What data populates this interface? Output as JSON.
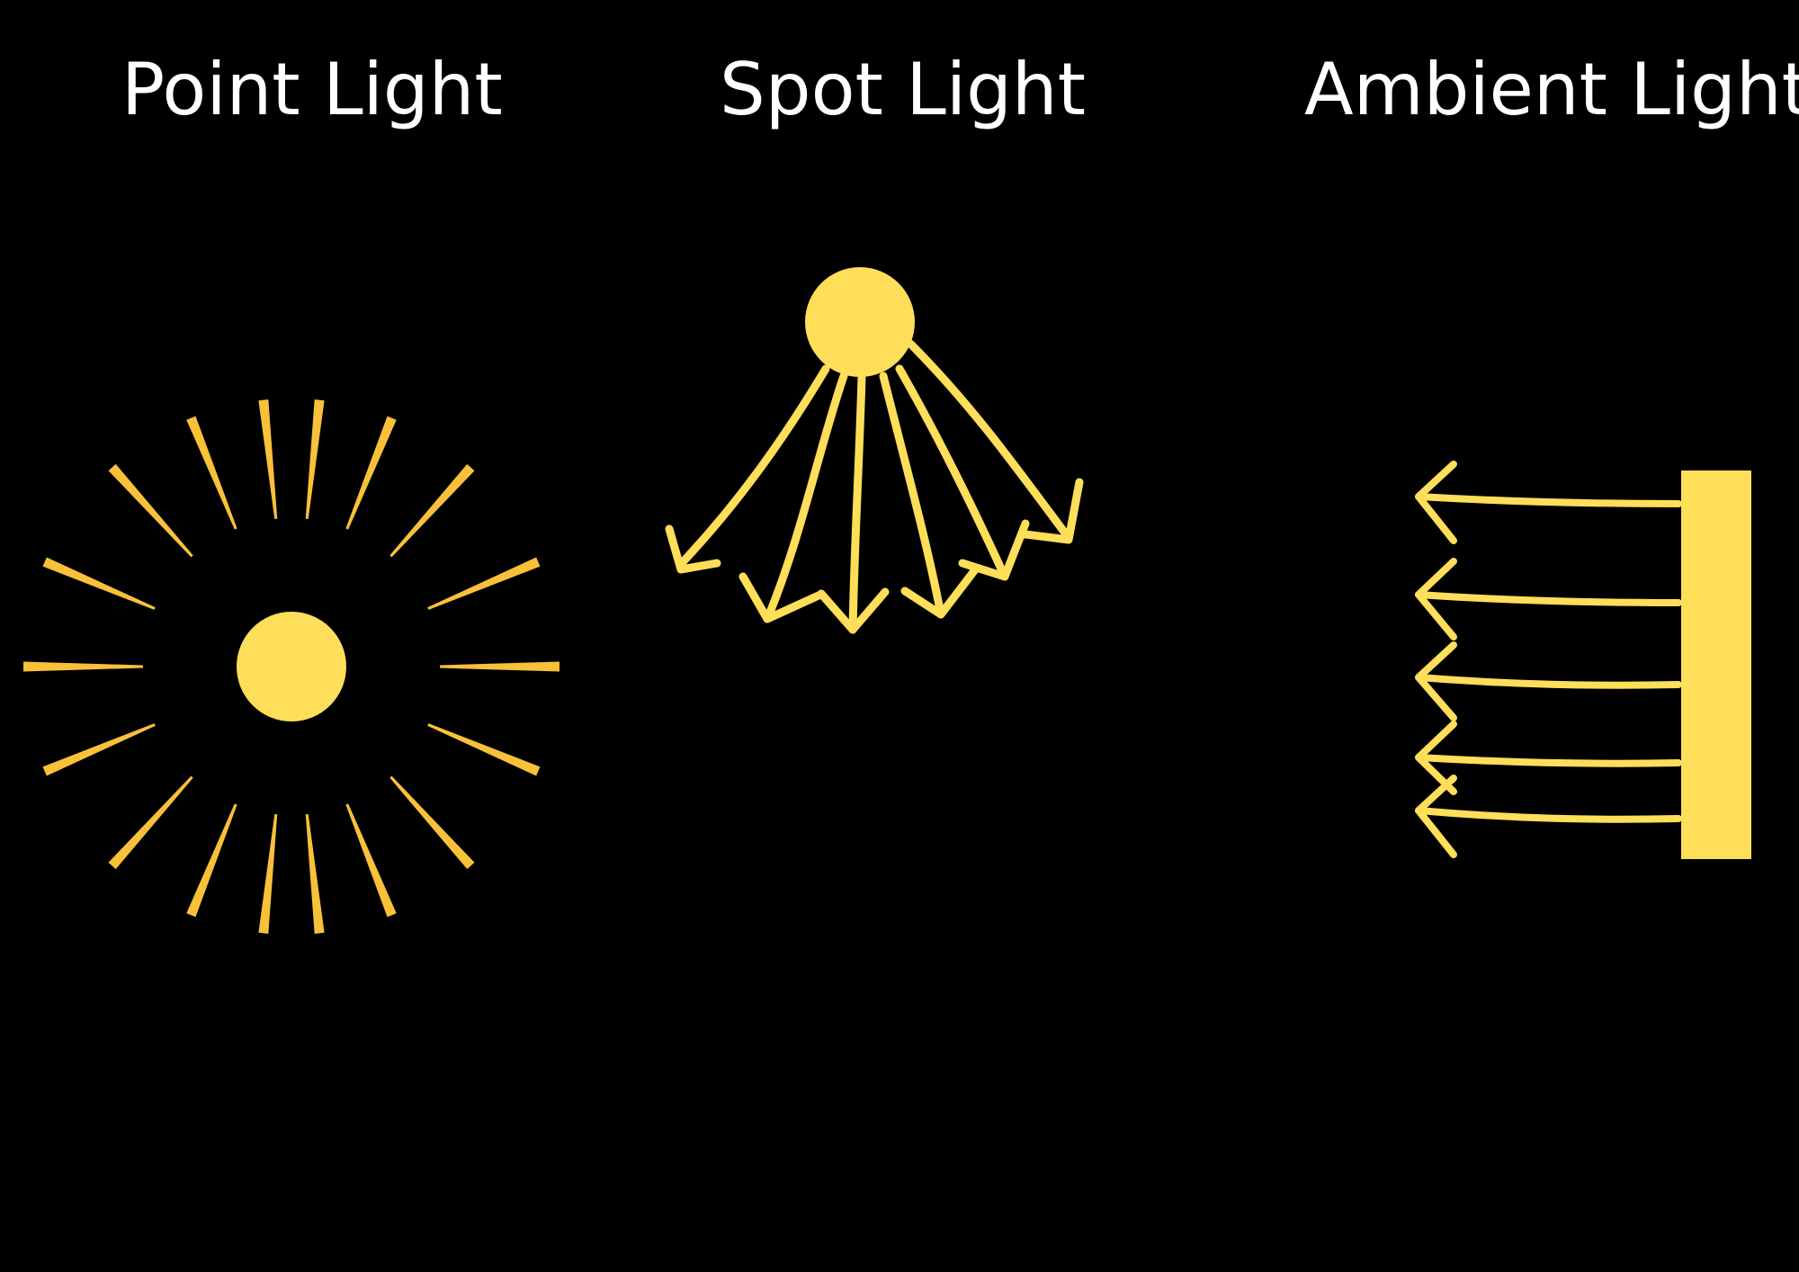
{
  "labels": {
    "point": "Point Light",
    "spot": "Spot Light",
    "ambient": "Ambient Light"
  },
  "colors": {
    "background": "#000000",
    "text": "#ffffff",
    "light_fill": "#ffde59",
    "ray_stroke": "#f9c03a"
  },
  "icons": {
    "point": "point-light-icon",
    "spot": "spot-light-icon",
    "ambient": "ambient-light-icon"
  }
}
